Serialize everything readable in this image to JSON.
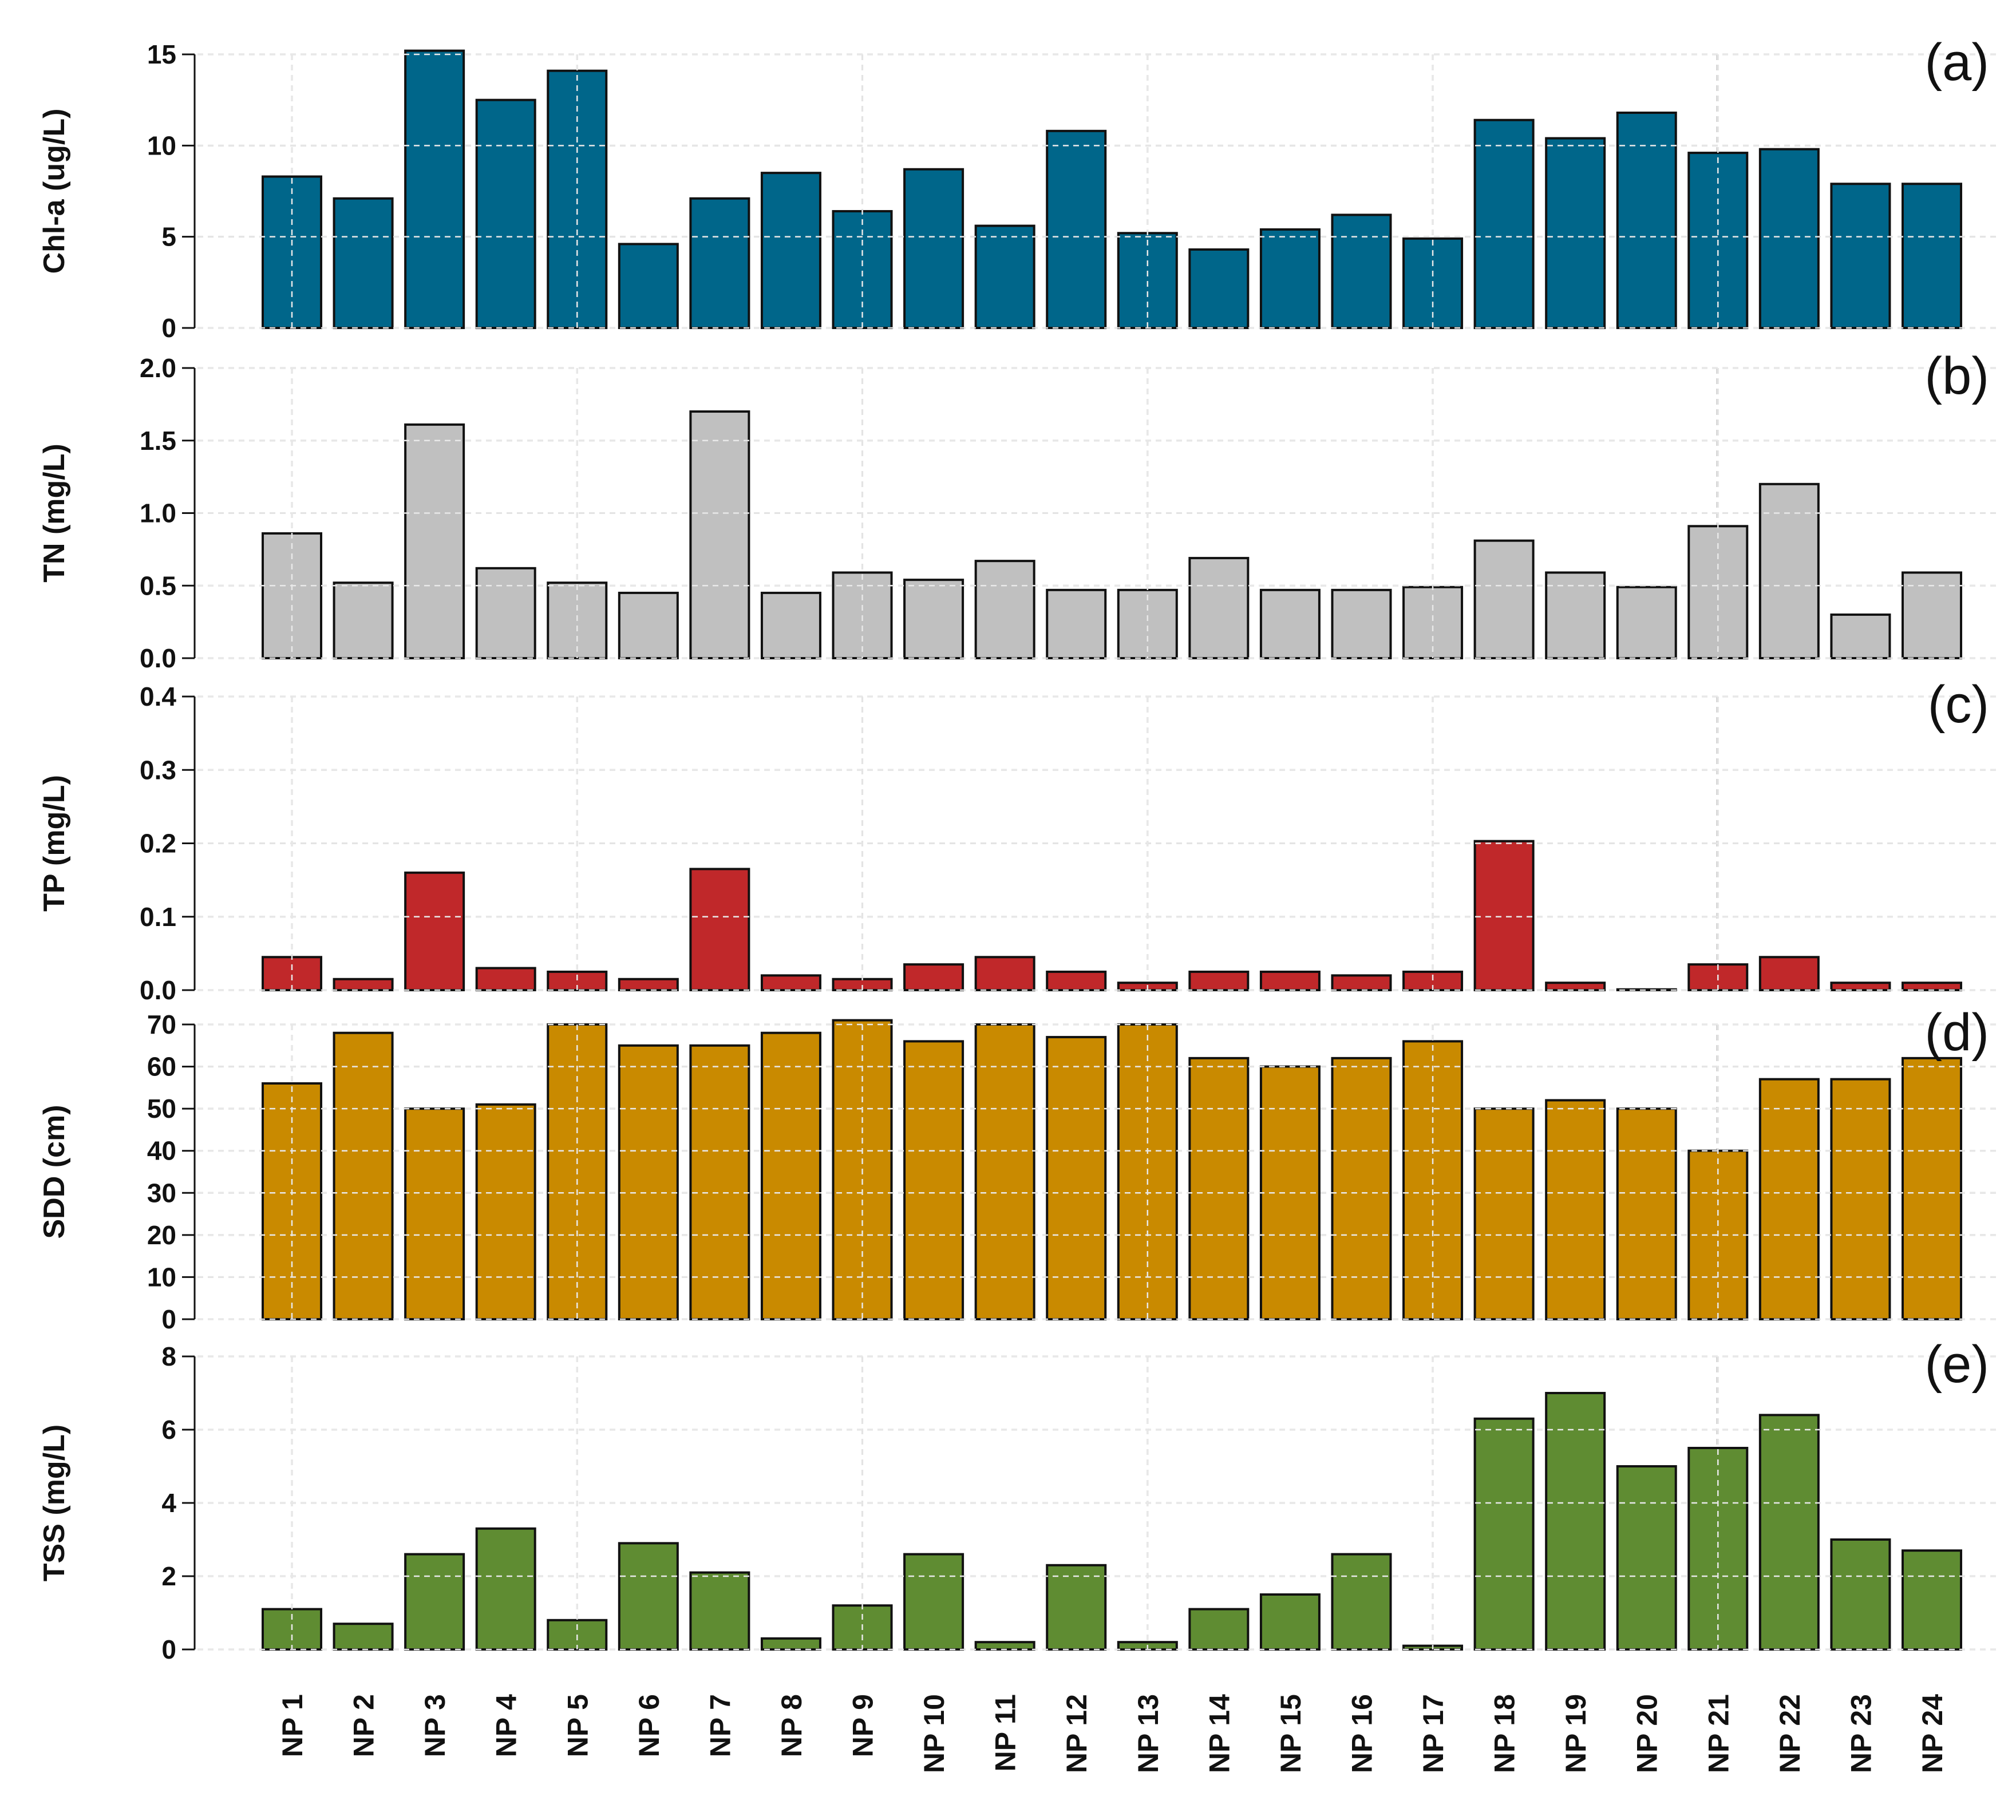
{
  "chart_data": [
    {
      "type": "bar",
      "panel_label": "(a)",
      "ylabel": "Chl-a (ug/L)",
      "ylim": [
        0,
        15
      ],
      "yticks": [
        "0",
        "5",
        "10",
        "15"
      ],
      "color": "#00668a",
      "categories": [
        "NP 1",
        "NP 2",
        "NP 3",
        "NP 4",
        "NP 5",
        "NP 6",
        "NP 7",
        "NP 8",
        "NP 9",
        "NP 10",
        "NP 11",
        "NP 12",
        "NP 13",
        "NP 14",
        "NP 15",
        "NP 16",
        "NP 17",
        "NP 18",
        "NP 19",
        "NP 20",
        "NP 21",
        "NP 22",
        "NP 23",
        "NP 24"
      ],
      "values": [
        8.3,
        7.1,
        15.2,
        12.5,
        14.1,
        4.6,
        7.1,
        8.5,
        6.4,
        8.7,
        5.6,
        10.8,
        5.2,
        4.3,
        5.4,
        6.2,
        4.9,
        11.4,
        10.4,
        11.8,
        9.6,
        9.8,
        7.9,
        7.9
      ]
    },
    {
      "type": "bar",
      "panel_label": "(b)",
      "ylabel": "TN (mg/L)",
      "ylim": [
        0,
        2.0
      ],
      "yticks": [
        "0.0",
        "0.5",
        "1.0",
        "1.5",
        "2.0"
      ],
      "color": "#c0c0c0",
      "categories": [
        "NP 1",
        "NP 2",
        "NP 3",
        "NP 4",
        "NP 5",
        "NP 6",
        "NP 7",
        "NP 8",
        "NP 9",
        "NP 10",
        "NP 11",
        "NP 12",
        "NP 13",
        "NP 14",
        "NP 15",
        "NP 16",
        "NP 17",
        "NP 18",
        "NP 19",
        "NP 20",
        "NP 21",
        "NP 22",
        "NP 23",
        "NP 24"
      ],
      "values": [
        0.86,
        0.52,
        1.61,
        0.62,
        0.52,
        0.45,
        1.7,
        0.45,
        0.59,
        0.54,
        0.67,
        0.47,
        0.47,
        0.69,
        0.47,
        0.47,
        0.49,
        0.81,
        0.59,
        0.49,
        0.91,
        1.2,
        0.3,
        0.59
      ]
    },
    {
      "type": "bar",
      "panel_label": "(c)",
      "ylabel": "TP (mg/L)",
      "ylim": [
        0,
        0.4
      ],
      "yticks": [
        "0.0",
        "0.1",
        "0.2",
        "0.3",
        "0.4"
      ],
      "color": "#c0282a",
      "categories": [
        "NP 1",
        "NP 2",
        "NP 3",
        "NP 4",
        "NP 5",
        "NP 6",
        "NP 7",
        "NP 8",
        "NP 9",
        "NP 10",
        "NP 11",
        "NP 12",
        "NP 13",
        "NP 14",
        "NP 15",
        "NP 16",
        "NP 17",
        "NP 18",
        "NP 19",
        "NP 20",
        "NP 21",
        "NP 22",
        "NP 23",
        "NP 24"
      ],
      "values": [
        0.045,
        0.015,
        0.16,
        0.03,
        0.025,
        0.015,
        0.165,
        0.02,
        0.015,
        0.035,
        0.045,
        0.025,
        0.01,
        0.025,
        0.025,
        0.02,
        0.025,
        0.203,
        0.01,
        0.001,
        0.035,
        0.045,
        0.01,
        0.01
      ]
    },
    {
      "type": "bar",
      "panel_label": "(d)",
      "ylabel": "SDD (cm)",
      "ylim": [
        0,
        70
      ],
      "yticks": [
        "0",
        "10",
        "20",
        "30",
        "40",
        "50",
        "60",
        "70"
      ],
      "color": "#c98a00",
      "categories": [
        "NP 1",
        "NP 2",
        "NP 3",
        "NP 4",
        "NP 5",
        "NP 6",
        "NP 7",
        "NP 8",
        "NP 9",
        "NP 10",
        "NP 11",
        "NP 12",
        "NP 13",
        "NP 14",
        "NP 15",
        "NP 16",
        "NP 17",
        "NP 18",
        "NP 19",
        "NP 20",
        "NP 21",
        "NP 22",
        "NP 23",
        "NP 24"
      ],
      "values": [
        56,
        68,
        50,
        51,
        70,
        65,
        65,
        68,
        71,
        66,
        70,
        67,
        70,
        62,
        60,
        62,
        66,
        50,
        52,
        50,
        40,
        57,
        57,
        62
      ]
    },
    {
      "type": "bar",
      "panel_label": "(e)",
      "ylabel": "TSS (mg/L)",
      "ylim": [
        0,
        8
      ],
      "yticks": [
        "0",
        "2",
        "4",
        "6",
        "8"
      ],
      "color": "#5f8c32",
      "categories": [
        "NP 1",
        "NP 2",
        "NP 3",
        "NP 4",
        "NP 5",
        "NP 6",
        "NP 7",
        "NP 8",
        "NP 9",
        "NP 10",
        "NP 11",
        "NP 12",
        "NP 13",
        "NP 14",
        "NP 15",
        "NP 16",
        "NP 17",
        "NP 18",
        "NP 19",
        "NP 20",
        "NP 21",
        "NP 22",
        "NP 23",
        "NP 24"
      ],
      "values": [
        1.1,
        0.7,
        2.6,
        3.3,
        0.8,
        2.9,
        2.1,
        0.3,
        1.2,
        2.6,
        0.2,
        2.3,
        0.2,
        1.1,
        1.5,
        2.6,
        0.1,
        6.3,
        7.0,
        5.0,
        5.5,
        6.4,
        3.0,
        2.7
      ]
    }
  ]
}
